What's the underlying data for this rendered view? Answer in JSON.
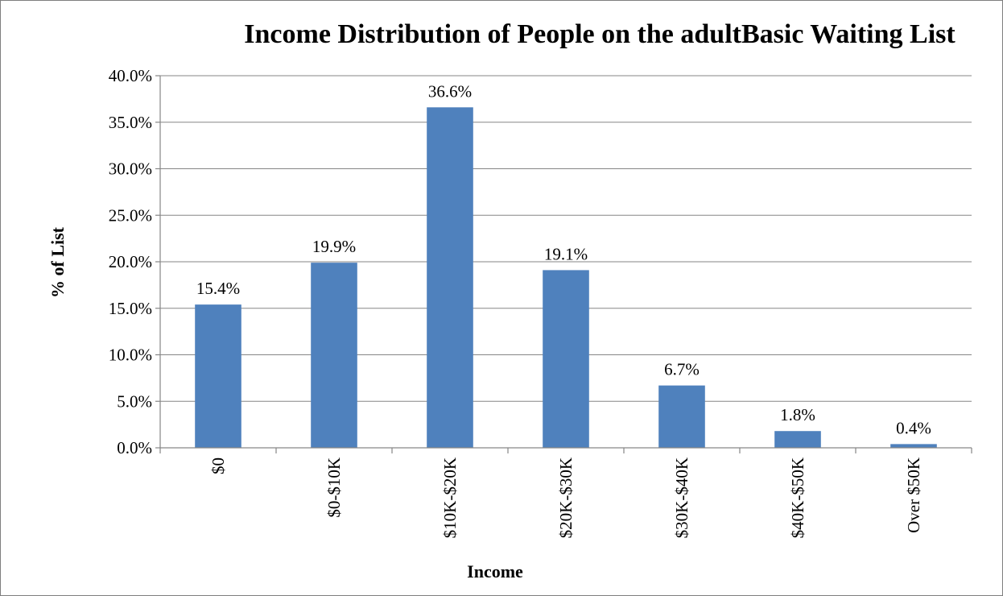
{
  "chart_data": {
    "type": "bar",
    "title": "Income Distribution of People on the adultBasic Waiting List",
    "xlabel": "Income",
    "ylabel": "% of List",
    "categories": [
      "$0",
      "$0-$10K",
      "$10K-$20K",
      "$20K-$30K",
      "$30K-$40K",
      "$40K-$50K",
      "Over $50K"
    ],
    "values": [
      15.4,
      19.9,
      36.6,
      19.1,
      6.7,
      1.8,
      0.4
    ],
    "data_labels": [
      "15.4%",
      "19.9%",
      "36.6%",
      "19.1%",
      "6.7%",
      "1.8%",
      "0.4%"
    ],
    "yticks": [
      "0.0%",
      "5.0%",
      "10.0%",
      "15.0%",
      "20.0%",
      "25.0%",
      "30.0%",
      "35.0%",
      "40.0%"
    ],
    "ylim": [
      0,
      40
    ],
    "ystep": 5,
    "grid": true,
    "legend": "none",
    "bar_color": "#4f81bd"
  }
}
